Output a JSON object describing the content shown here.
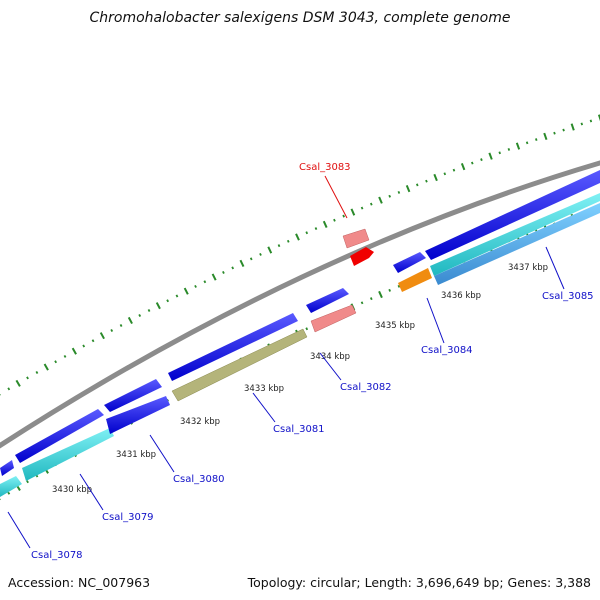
{
  "title": "Chromohalobacter salexigens DSM 3043, complete genome",
  "accession": "Accession: NC_007963",
  "topology": "Topology: circular; Length: 3,696,649 bp; Genes: 3,388",
  "scale_labels": [
    "3430 kbp",
    "3431 kbp",
    "3432 kbp",
    "3433 kbp",
    "3434 kbp",
    "3435 kbp",
    "3436 kbp",
    "3437 kbp"
  ],
  "gene_labels": [
    {
      "text": "Csal_3078",
      "color": "#1010c8"
    },
    {
      "text": "Csal_3079",
      "color": "#1010c8"
    },
    {
      "text": "Csal_3080",
      "color": "#1010c8"
    },
    {
      "text": "Csal_3081",
      "color": "#1010c8"
    },
    {
      "text": "Csal_3082",
      "color": "#1010c8"
    },
    {
      "text": "Csal_3083",
      "color": "#e01010"
    },
    {
      "text": "Csal_3084",
      "color": "#1010c8"
    },
    {
      "text": "Csal_3085",
      "color": "#1010c8"
    }
  ],
  "colors": {
    "cds": "#0a0ae6",
    "cds_light": "#3ad2d8",
    "rna_pink": "#f08a8a",
    "rna_red": "#f00000",
    "olive": "#b4b47a",
    "orange": "#f08c10",
    "backbone": "#8c8c8c",
    "tick": "#2a8a2a"
  }
}
